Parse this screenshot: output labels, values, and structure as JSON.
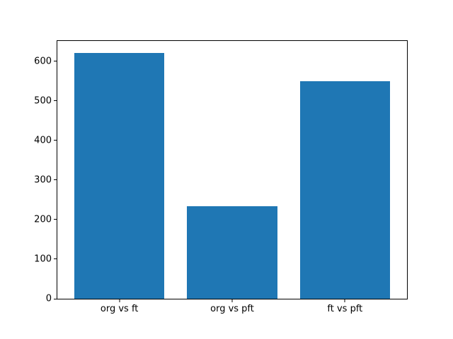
{
  "chart_data": {
    "type": "bar",
    "title": "",
    "xlabel": "",
    "ylabel": "",
    "categories": [
      "org vs ft",
      "org vs pft",
      "ft vs pft"
    ],
    "values": [
      620,
      234,
      550
    ],
    "bar_color": "#1f77b4",
    "bar_width_fraction": 0.8,
    "x_positions": [
      0,
      1,
      2
    ],
    "xlim": [
      -0.55,
      2.55
    ],
    "ylim": [
      0,
      651
    ],
    "yticks": [
      0,
      100,
      200,
      300,
      400,
      500,
      600
    ],
    "grid": false,
    "legend": null,
    "background_color": "#ffffff",
    "spine_color": "#000000",
    "tick_label_color": "#000000"
  }
}
